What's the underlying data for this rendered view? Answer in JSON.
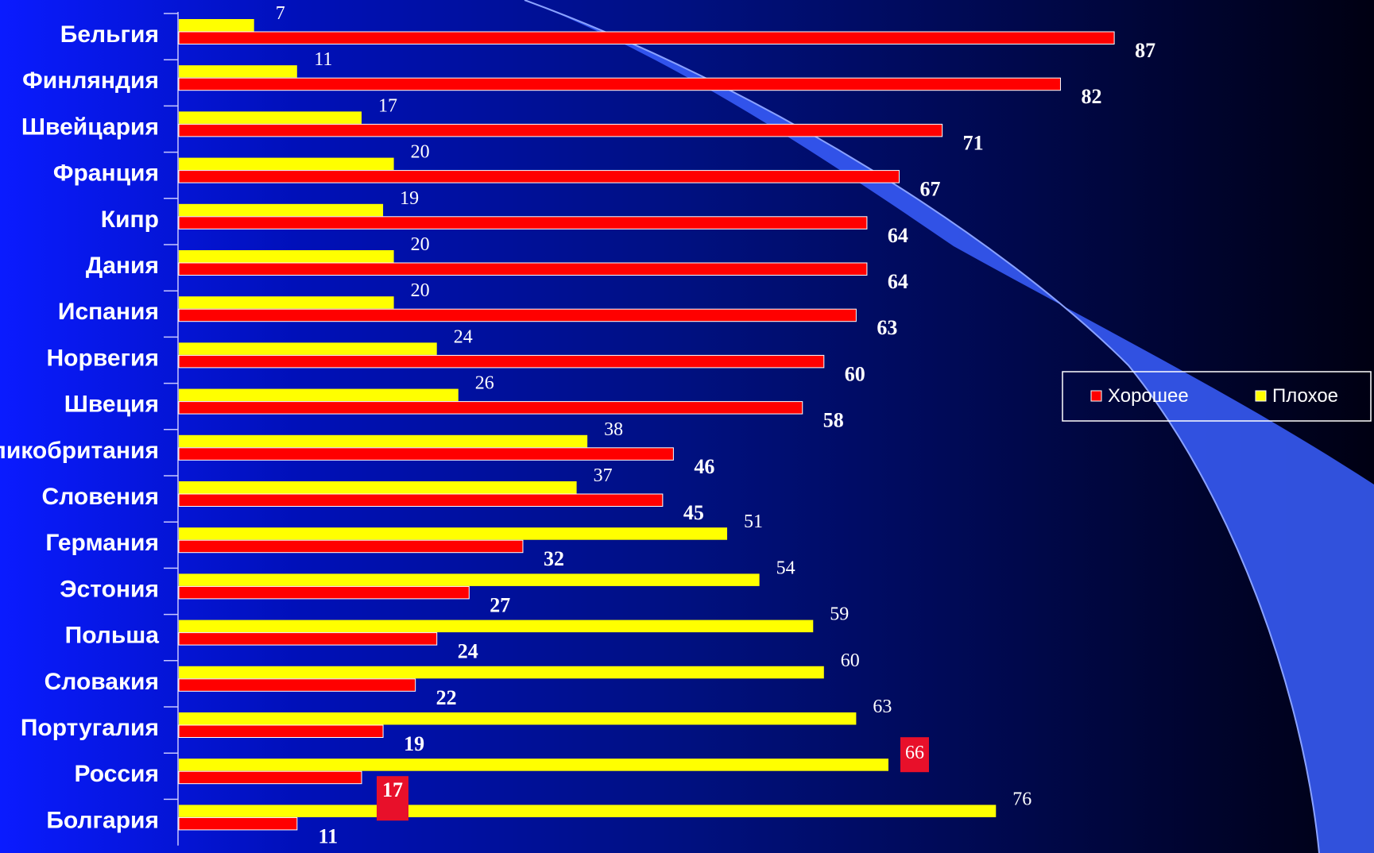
{
  "chart_data": {
    "type": "bar",
    "orientation": "horizontal",
    "categories": [
      "Бельгия",
      "Финляндия",
      "Швейцария",
      "Франция",
      "Кипр",
      "Дания",
      "Испания",
      "Норвегия",
      "Швеция",
      "Великобритания",
      "Словения",
      "Германия",
      "Эстония",
      "Польша",
      "Словакия",
      "Португалия",
      "Россия",
      "Болгария"
    ],
    "series": [
      {
        "name": "Хорошее",
        "color": "#ff0000",
        "values": [
          87,
          82,
          71,
          67,
          64,
          64,
          63,
          60,
          58,
          46,
          45,
          32,
          27,
          24,
          22,
          19,
          17,
          11
        ]
      },
      {
        "name": "Плохое",
        "color": "#ffff00",
        "values": [
          7,
          11,
          17,
          20,
          19,
          20,
          20,
          24,
          26,
          38,
          37,
          51,
          54,
          59,
          60,
          63,
          66,
          76
        ]
      }
    ],
    "highlight_category": "Россия",
    "highlight_color": "#e8102a",
    "xlim": [
      0,
      100
    ],
    "legend_position": "right",
    "grid": false
  }
}
